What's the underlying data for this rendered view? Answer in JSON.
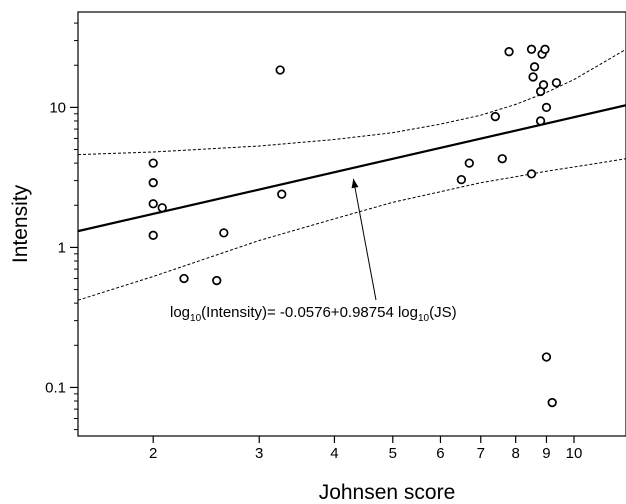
{
  "chart_data": {
    "type": "scatter",
    "xlabel": "Johnsen score",
    "ylabel": "Intensity",
    "x_scale": "log",
    "y_scale": "log",
    "xlim": [
      1.5,
      12.2
    ],
    "ylim": [
      0.045,
      48
    ],
    "x_ticks": [
      {
        "value": 2,
        "label": "2"
      },
      {
        "value": 3,
        "label": "3"
      },
      {
        "value": 4,
        "label": "4"
      },
      {
        "value": 5,
        "label": "5"
      },
      {
        "value": 6,
        "label": "6"
      },
      {
        "value": 7,
        "label": "7"
      },
      {
        "value": 8,
        "label": "8"
      },
      {
        "value": 9,
        "label": "9"
      },
      {
        "value": 10,
        "label": "10"
      }
    ],
    "y_ticks": [
      {
        "value": 0.1,
        "label": "0.1"
      },
      {
        "value": 1,
        "label": "1"
      },
      {
        "value": 10,
        "label": "10"
      }
    ],
    "points": [
      {
        "x": 2.0,
        "y": 4.0
      },
      {
        "x": 2.0,
        "y": 2.9
      },
      {
        "x": 2.0,
        "y": 2.05
      },
      {
        "x": 2.0,
        "y": 1.22
      },
      {
        "x": 2.07,
        "y": 1.92
      },
      {
        "x": 2.25,
        "y": 0.6
      },
      {
        "x": 2.55,
        "y": 0.58
      },
      {
        "x": 2.62,
        "y": 1.27
      },
      {
        "x": 3.25,
        "y": 18.5
      },
      {
        "x": 3.27,
        "y": 2.4
      },
      {
        "x": 6.5,
        "y": 3.05
      },
      {
        "x": 6.7,
        "y": 4.0
      },
      {
        "x": 7.4,
        "y": 8.6
      },
      {
        "x": 7.6,
        "y": 4.3
      },
      {
        "x": 7.8,
        "y": 25.0
      },
      {
        "x": 8.5,
        "y": 3.35
      },
      {
        "x": 8.5,
        "y": 26.0
      },
      {
        "x": 8.55,
        "y": 16.5
      },
      {
        "x": 8.6,
        "y": 19.5
      },
      {
        "x": 8.8,
        "y": 13.0
      },
      {
        "x": 8.8,
        "y": 8.0
      },
      {
        "x": 8.85,
        "y": 24.0
      },
      {
        "x": 8.9,
        "y": 14.5
      },
      {
        "x": 8.95,
        "y": 26.0
      },
      {
        "x": 9.0,
        "y": 10.0
      },
      {
        "x": 9.0,
        "y": 0.165
      },
      {
        "x": 9.2,
        "y": 0.078
      },
      {
        "x": 9.35,
        "y": 15.0
      }
    ],
    "regression": {
      "intercept": -0.0576,
      "slope": 0.98754
    },
    "confidence_band": {
      "upper": [
        [
          1.5,
          4.6
        ],
        [
          2,
          4.8
        ],
        [
          3,
          5.3
        ],
        [
          4,
          5.9
        ],
        [
          5,
          6.6
        ],
        [
          6,
          7.6
        ],
        [
          7,
          8.8
        ],
        [
          8,
          10.5
        ],
        [
          9,
          12.8
        ],
        [
          10,
          15.8
        ],
        [
          12.2,
          26
        ]
      ],
      "lower": [
        [
          1.5,
          0.42
        ],
        [
          2,
          0.62
        ],
        [
          3,
          1.12
        ],
        [
          4,
          1.6
        ],
        [
          5,
          2.1
        ],
        [
          6,
          2.5
        ],
        [
          7,
          2.9
        ],
        [
          8,
          3.2
        ],
        [
          9,
          3.5
        ],
        [
          10,
          3.75
        ],
        [
          12.2,
          4.3
        ]
      ]
    },
    "annotation": {
      "parts": [
        {
          "text": "log",
          "sub": false
        },
        {
          "text": "10",
          "sub": true
        },
        {
          "text": "(Intensity)= -0.0576+0.98754 log",
          "sub": false
        },
        {
          "text": "10",
          "sub": true
        },
        {
          "text": "(JS)",
          "sub": false
        }
      ],
      "arrow_to": {
        "x": 4.3,
        "y": 3.3
      }
    }
  }
}
